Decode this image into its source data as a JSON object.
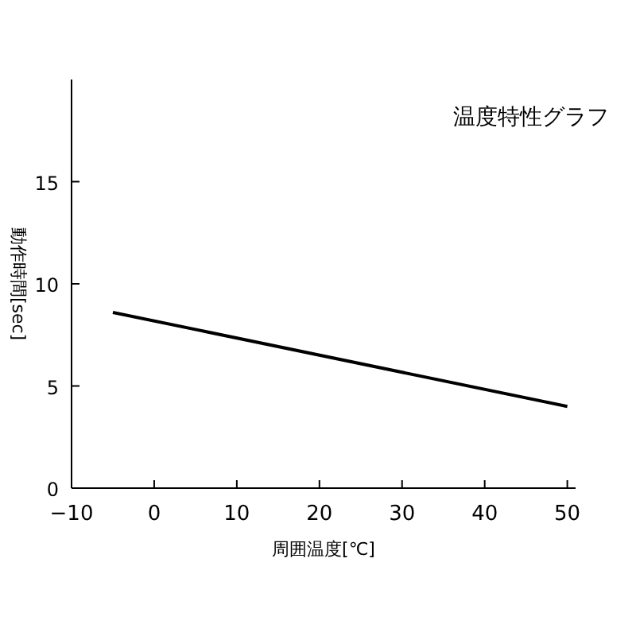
{
  "chart_data": {
    "type": "line",
    "title": "温度特性グラフ",
    "xlabel": "周囲温度[℃]",
    "ylabel": "動作時間[sec]",
    "x": [
      -5,
      50
    ],
    "series": [
      {
        "color": "#000000",
        "values": [
          8.6,
          4.0
        ]
      }
    ],
    "xlim": [
      -10,
      51
    ],
    "ylim": [
      0,
      20
    ],
    "xticks": [
      {
        "value": -10,
        "label": "−10"
      },
      0,
      10,
      20,
      30,
      40,
      50
    ],
    "yticks": [
      0,
      5,
      10,
      15
    ],
    "grid": false,
    "marker": "none",
    "line_style": "solid"
  }
}
